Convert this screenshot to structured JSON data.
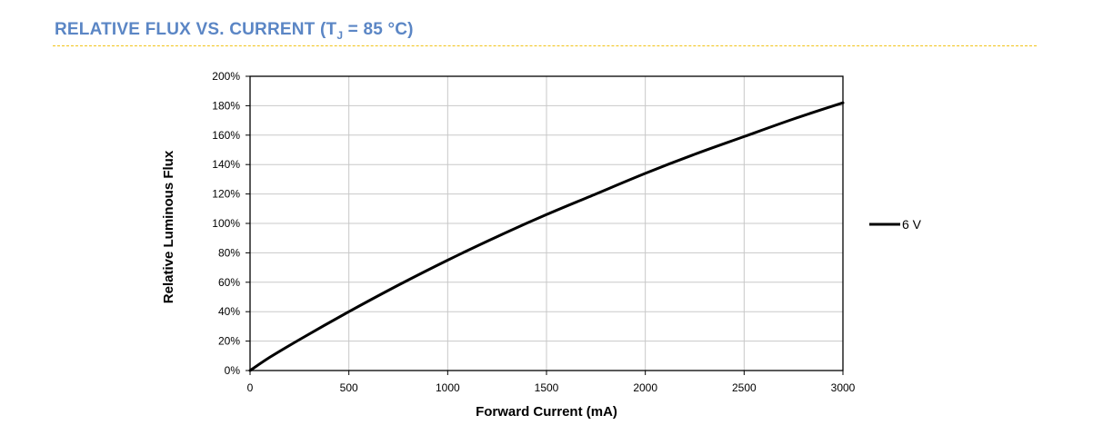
{
  "header": {
    "title_main": "RELATIVE FLUX VS. CURRENT (T",
    "title_sub": "J",
    "title_tail": " = 85 °C)"
  },
  "colors": {
    "title": "#5b86c5",
    "divider": "#f2c418",
    "grid": "#c8c8c8",
    "series": "#000000"
  },
  "chart_data": {
    "type": "line",
    "title": "RELATIVE FLUX VS. CURRENT (TJ = 85 °C)",
    "xlabel": "Forward Current (mA)",
    "ylabel": "Relative Luminous Flux",
    "xlim": [
      0,
      3000
    ],
    "ylim": [
      0,
      200
    ],
    "x_ticks": [
      0,
      500,
      1000,
      1500,
      2000,
      2500,
      3000
    ],
    "y_ticks": [
      0,
      20,
      40,
      60,
      80,
      100,
      120,
      140,
      160,
      180,
      200
    ],
    "y_tick_labels": [
      "0%",
      "20%",
      "40%",
      "60%",
      "80%",
      "100%",
      "120%",
      "140%",
      "160%",
      "180%",
      "200%"
    ],
    "grid": true,
    "legend_position": "right",
    "series": [
      {
        "name": "6 V",
        "x": [
          0,
          100,
          250,
          500,
          750,
          1000,
          1250,
          1500,
          1750,
          2000,
          2250,
          2500,
          2750,
          3000
        ],
        "y": [
          0,
          9,
          21,
          40,
          58,
          75,
          91,
          106,
          120,
          134,
          147,
          159,
          171,
          182
        ]
      }
    ]
  }
}
